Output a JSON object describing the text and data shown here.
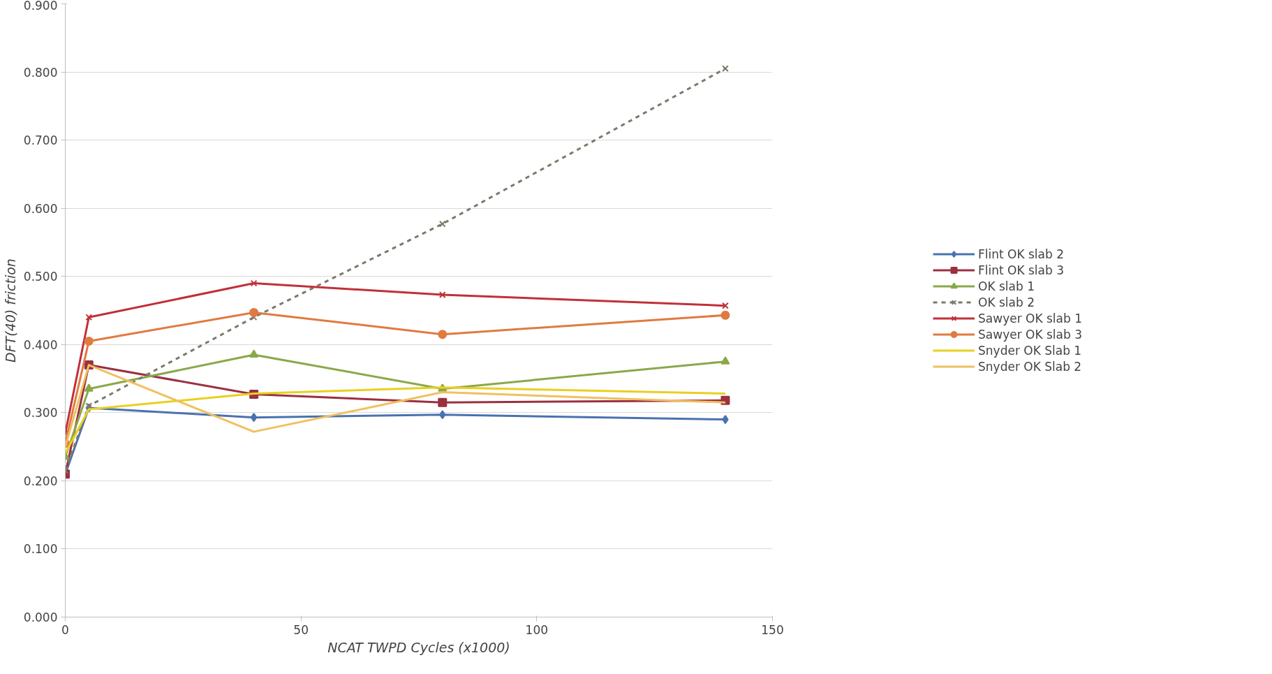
{
  "chart_data": {
    "type": "line",
    "xlabel": "NCAT TWPD Cycles (x1000)",
    "ylabel": "DFT(40) friction",
    "x": [
      0,
      5,
      40,
      80,
      140
    ],
    "series": [
      {
        "name": "Flint OK slab 2",
        "color": "#4a72b0",
        "marker": "diamond",
        "values": [
          0.21,
          0.307,
          0.293,
          0.297,
          0.29
        ]
      },
      {
        "name": "Flint OK slab 3",
        "color": "#9b3040",
        "marker": "square",
        "values": [
          0.21,
          0.37,
          0.327,
          0.315,
          0.318
        ]
      },
      {
        "name": "OK slab 1",
        "color": "#8aa84a",
        "marker": "triangle",
        "values": [
          0.235,
          0.335,
          0.385,
          0.335,
          0.375
        ]
      },
      {
        "name": "OK slab 2",
        "color": "#7a7a6a",
        "marker": "cross",
        "line_style": "dashed",
        "values": [
          0.215,
          0.31,
          0.44,
          0.577,
          0.805
        ]
      },
      {
        "name": "Sawyer OK slab 1",
        "color": "#c0303a",
        "marker": "cross",
        "values": [
          0.27,
          0.44,
          0.49,
          0.473,
          0.457
        ]
      },
      {
        "name": "Sawyer OK slab 3",
        "color": "#e07a40",
        "marker": "circle",
        "values": [
          0.255,
          0.405,
          0.447,
          0.415,
          0.443
        ]
      },
      {
        "name": "Snyder OK Slab 1",
        "color": "#e8d020",
        "marker": "none",
        "values": [
          0.24,
          0.305,
          0.328,
          0.337,
          0.328
        ]
      },
      {
        "name": "Snyder OK Slab 2",
        "color": "#f0c060",
        "marker": "none",
        "values": [
          0.25,
          0.37,
          0.272,
          0.33,
          0.315
        ]
      }
    ],
    "xlim": [
      0,
      150
    ],
    "xticks": [
      0,
      50,
      100,
      150
    ],
    "ylim": [
      0,
      0.9
    ],
    "yticks": [
      {
        "value": 0,
        "label": "0.000"
      },
      {
        "value": 0.1,
        "label": "0.100"
      },
      {
        "value": 0.2,
        "label": "0.200"
      },
      {
        "value": 0.3,
        "label": "0.300"
      },
      {
        "value": 0.4,
        "label": "0.400"
      },
      {
        "value": 0.5,
        "label": "0.500"
      },
      {
        "value": 0.6,
        "label": "0.600"
      },
      {
        "value": 0.7,
        "label": "0.700"
      },
      {
        "value": 0.8,
        "label": "0.800"
      },
      {
        "value": 0.9,
        "label": "0.900"
      }
    ],
    "grid": "y",
    "legend": "right"
  }
}
